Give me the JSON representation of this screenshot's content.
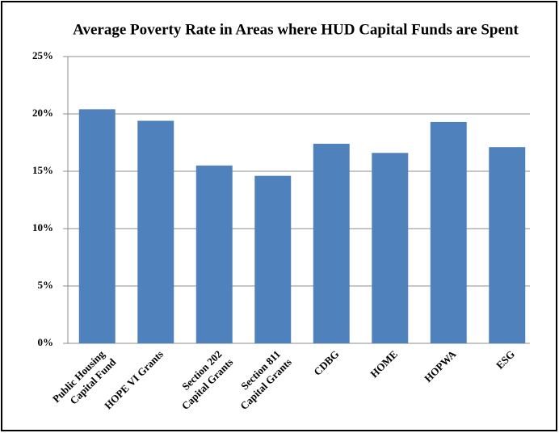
{
  "chart_data": {
    "type": "bar",
    "title": "Average Poverty Rate in Areas where HUD Capital Funds are Spent",
    "categories": [
      [
        "Public Housing",
        "Capital Fund"
      ],
      [
        "HOPE VI Grants"
      ],
      [
        "Section 202",
        "Capital Grants"
      ],
      [
        "Section 811",
        "Capital Grants"
      ],
      [
        "CDBG"
      ],
      [
        "HOME"
      ],
      [
        "HOPWA"
      ],
      [
        "ESG"
      ]
    ],
    "values": [
      20.4,
      19.4,
      15.5,
      14.6,
      17.4,
      16.6,
      19.3,
      17.1
    ],
    "color": "#4f81bd",
    "ylim": [
      0,
      25
    ],
    "yticks": [
      {
        "value": 0,
        "label": "0%"
      },
      {
        "value": 5,
        "label": "5%"
      },
      {
        "value": 10,
        "label": "10%"
      },
      {
        "value": 15,
        "label": "15%"
      },
      {
        "value": 20,
        "label": "20%"
      },
      {
        "value": 25,
        "label": "25%"
      }
    ],
    "grid": true
  }
}
